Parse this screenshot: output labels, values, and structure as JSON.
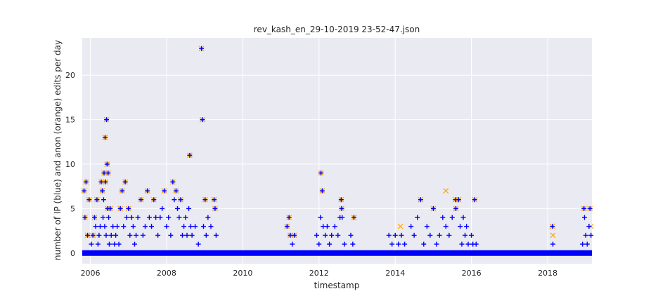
{
  "chart_data": {
    "type": "scatter",
    "title": "rev_kash_en_29-10-2019 23-52-47.json",
    "xlabel": "timestamp",
    "ylabel": "number of IP (blue) and anon (orange) edits per day",
    "xlim": [
      "2005-10-15",
      "2019-03-01"
    ],
    "ylim": [
      -1.2,
      24.2
    ],
    "x_ticks": [
      "2006",
      "2008",
      "2010",
      "2012",
      "2014",
      "2016",
      "2018"
    ],
    "y_ticks": [
      0,
      5,
      10,
      15,
      20
    ],
    "grid": true,
    "colors": {
      "background": "#eaeaf2",
      "ip": "#0000ff",
      "anon": "#ffa500"
    },
    "zero_baseline": {
      "start": "2005-10-15",
      "end": "2019-03-01",
      "value": 0
    },
    "series": [
      {
        "marker": "plus",
        "color": "#0000ff",
        "points": [
          [
            "2005-11-01",
            7
          ],
          [
            "2005-11-10",
            4
          ],
          [
            "2005-11-20",
            8
          ],
          [
            "2005-12-05",
            2
          ],
          [
            "2005-12-20",
            6
          ],
          [
            "2006-01-10",
            1
          ],
          [
            "2006-01-25",
            2
          ],
          [
            "2006-02-10",
            4
          ],
          [
            "2006-02-20",
            3
          ],
          [
            "2006-03-05",
            6
          ],
          [
            "2006-03-15",
            1
          ],
          [
            "2006-03-25",
            2
          ],
          [
            "2006-04-05",
            3
          ],
          [
            "2006-04-15",
            8
          ],
          [
            "2006-04-25",
            7
          ],
          [
            "2006-05-02",
            4
          ],
          [
            "2006-05-08",
            6
          ],
          [
            "2006-05-12",
            9
          ],
          [
            "2006-05-18",
            3
          ],
          [
            "2006-05-22",
            13
          ],
          [
            "2006-05-26",
            8
          ],
          [
            "2006-06-01",
            2
          ],
          [
            "2006-06-05",
            15
          ],
          [
            "2006-06-10",
            10
          ],
          [
            "2006-06-15",
            5
          ],
          [
            "2006-06-20",
            9
          ],
          [
            "2006-06-25",
            4
          ],
          [
            "2006-07-01",
            1
          ],
          [
            "2006-07-10",
            5
          ],
          [
            "2006-07-20",
            2
          ],
          [
            "2006-08-05",
            3
          ],
          [
            "2006-08-20",
            1
          ],
          [
            "2006-09-01",
            2
          ],
          [
            "2006-09-15",
            3
          ],
          [
            "2006-10-01",
            1
          ],
          [
            "2006-10-15",
            5
          ],
          [
            "2006-11-01",
            7
          ],
          [
            "2006-11-15",
            3
          ],
          [
            "2006-12-01",
            8
          ],
          [
            "2006-12-15",
            4
          ],
          [
            "2007-01-01",
            5
          ],
          [
            "2007-01-15",
            2
          ],
          [
            "2007-02-01",
            4
          ],
          [
            "2007-02-15",
            3
          ],
          [
            "2007-03-01",
            1
          ],
          [
            "2007-03-15",
            2
          ],
          [
            "2007-04-01",
            4
          ],
          [
            "2007-05-01",
            6
          ],
          [
            "2007-05-20",
            2
          ],
          [
            "2007-06-10",
            3
          ],
          [
            "2007-07-01",
            7
          ],
          [
            "2007-07-20",
            4
          ],
          [
            "2007-08-10",
            3
          ],
          [
            "2007-09-01",
            6
          ],
          [
            "2007-09-20",
            4
          ],
          [
            "2007-10-10",
            2
          ],
          [
            "2007-11-01",
            4
          ],
          [
            "2007-11-20",
            5
          ],
          [
            "2007-12-10",
            7
          ],
          [
            "2008-01-01",
            3
          ],
          [
            "2008-01-20",
            4
          ],
          [
            "2008-02-10",
            2
          ],
          [
            "2008-03-01",
            8
          ],
          [
            "2008-03-15",
            6
          ],
          [
            "2008-04-01",
            7
          ],
          [
            "2008-04-15",
            5
          ],
          [
            "2008-05-01",
            4
          ],
          [
            "2008-05-15",
            6
          ],
          [
            "2008-06-01",
            2
          ],
          [
            "2008-06-15",
            3
          ],
          [
            "2008-07-01",
            4
          ],
          [
            "2008-07-15",
            2
          ],
          [
            "2008-08-01",
            5
          ],
          [
            "2008-08-10",
            11
          ],
          [
            "2008-08-20",
            3
          ],
          [
            "2008-09-01",
            2
          ],
          [
            "2008-10-01",
            3
          ],
          [
            "2008-11-01",
            1
          ],
          [
            "2008-12-01",
            23
          ],
          [
            "2008-12-10",
            15
          ],
          [
            "2008-12-20",
            3
          ],
          [
            "2009-01-05",
            6
          ],
          [
            "2009-01-15",
            2
          ],
          [
            "2009-02-01",
            4
          ],
          [
            "2009-03-01",
            3
          ],
          [
            "2009-04-01",
            6
          ],
          [
            "2009-04-10",
            5
          ],
          [
            "2009-04-20",
            2
          ],
          [
            "2011-03-01",
            3
          ],
          [
            "2011-03-20",
            4
          ],
          [
            "2011-04-01",
            2
          ],
          [
            "2011-04-20",
            1
          ],
          [
            "2011-05-10",
            2
          ],
          [
            "2011-12-10",
            2
          ],
          [
            "2012-01-01",
            1
          ],
          [
            "2012-01-15",
            4
          ],
          [
            "2012-01-20",
            9
          ],
          [
            "2012-02-01",
            7
          ],
          [
            "2012-02-10",
            3
          ],
          [
            "2012-03-01",
            2
          ],
          [
            "2012-03-20",
            3
          ],
          [
            "2012-04-10",
            1
          ],
          [
            "2012-05-01",
            2
          ],
          [
            "2012-06-01",
            3
          ],
          [
            "2012-07-01",
            2
          ],
          [
            "2012-07-20",
            4
          ],
          [
            "2012-08-01",
            6
          ],
          [
            "2012-08-05",
            5
          ],
          [
            "2012-08-10",
            4
          ],
          [
            "2012-09-01",
            1
          ],
          [
            "2012-11-01",
            2
          ],
          [
            "2012-11-20",
            1
          ],
          [
            "2012-12-01",
            4
          ],
          [
            "2013-11-01",
            2
          ],
          [
            "2013-12-01",
            1
          ],
          [
            "2014-01-01",
            2
          ],
          [
            "2014-02-01",
            1
          ],
          [
            "2014-03-01",
            2
          ],
          [
            "2014-04-01",
            1
          ],
          [
            "2014-06-01",
            3
          ],
          [
            "2014-07-01",
            2
          ],
          [
            "2014-08-01",
            4
          ],
          [
            "2014-09-01",
            6
          ],
          [
            "2014-10-01",
            1
          ],
          [
            "2014-11-01",
            3
          ],
          [
            "2014-12-01",
            2
          ],
          [
            "2015-01-01",
            5
          ],
          [
            "2015-02-01",
            1
          ],
          [
            "2015-03-01",
            2
          ],
          [
            "2015-04-01",
            4
          ],
          [
            "2015-05-01",
            3
          ],
          [
            "2015-06-01",
            2
          ],
          [
            "2015-07-01",
            4
          ],
          [
            "2015-08-01",
            6
          ],
          [
            "2015-08-05",
            5
          ],
          [
            "2015-09-01",
            6
          ],
          [
            "2015-09-15",
            3
          ],
          [
            "2015-10-01",
            1
          ],
          [
            "2015-10-15",
            4
          ],
          [
            "2015-11-01",
            2
          ],
          [
            "2015-11-15",
            3
          ],
          [
            "2015-12-01",
            1
          ],
          [
            "2016-01-01",
            2
          ],
          [
            "2016-01-15",
            1
          ],
          [
            "2016-02-01",
            6
          ],
          [
            "2016-02-15",
            1
          ],
          [
            "2018-02-15",
            3
          ],
          [
            "2018-02-20",
            1
          ],
          [
            "2018-12-01",
            1
          ],
          [
            "2018-12-15",
            5
          ],
          [
            "2018-12-20",
            4
          ],
          [
            "2019-01-01",
            2
          ],
          [
            "2019-01-15",
            1
          ],
          [
            "2019-02-01",
            3
          ],
          [
            "2019-02-10",
            5
          ],
          [
            "2019-02-20",
            2
          ]
        ]
      },
      {
        "marker": "x",
        "color": "#ffa500",
        "points": [
          [
            "2005-11-01",
            7
          ],
          [
            "2005-11-10",
            4
          ],
          [
            "2005-11-20",
            8
          ],
          [
            "2005-12-05",
            2
          ],
          [
            "2005-12-20",
            6
          ],
          [
            "2006-01-25",
            2
          ],
          [
            "2006-02-10",
            4
          ],
          [
            "2006-03-05",
            6
          ],
          [
            "2006-04-15",
            8
          ],
          [
            "2006-04-25",
            7
          ],
          [
            "2006-05-12",
            9
          ],
          [
            "2006-05-22",
            13
          ],
          [
            "2006-05-26",
            8
          ],
          [
            "2006-06-05",
            15
          ],
          [
            "2006-06-10",
            10
          ],
          [
            "2006-06-15",
            5
          ],
          [
            "2006-06-20",
            9
          ],
          [
            "2006-07-10",
            5
          ],
          [
            "2006-10-15",
            5
          ],
          [
            "2006-11-01",
            7
          ],
          [
            "2006-12-01",
            8
          ],
          [
            "2007-01-01",
            5
          ],
          [
            "2007-05-01",
            6
          ],
          [
            "2007-07-01",
            7
          ],
          [
            "2007-09-01",
            6
          ],
          [
            "2007-12-10",
            7
          ],
          [
            "2008-03-01",
            8
          ],
          [
            "2008-04-01",
            7
          ],
          [
            "2008-05-15",
            6
          ],
          [
            "2008-08-10",
            11
          ],
          [
            "2008-12-01",
            23
          ],
          [
            "2008-12-10",
            15
          ],
          [
            "2009-01-05",
            6
          ],
          [
            "2009-04-01",
            6
          ],
          [
            "2009-04-10",
            5
          ],
          [
            "2011-03-01",
            3
          ],
          [
            "2011-03-20",
            4
          ],
          [
            "2011-04-01",
            2
          ],
          [
            "2011-05-10",
            2
          ],
          [
            "2012-01-20",
            9
          ],
          [
            "2012-02-01",
            7
          ],
          [
            "2012-08-01",
            6
          ],
          [
            "2012-08-05",
            5
          ],
          [
            "2012-12-01",
            4
          ],
          [
            "2014-02-20",
            3
          ],
          [
            "2014-09-01",
            6
          ],
          [
            "2015-01-01",
            5
          ],
          [
            "2015-05-01",
            7
          ],
          [
            "2015-08-01",
            6
          ],
          [
            "2015-08-05",
            5
          ],
          [
            "2015-09-01",
            6
          ],
          [
            "2016-02-01",
            6
          ],
          [
            "2018-02-15",
            3
          ],
          [
            "2018-02-20",
            2
          ],
          [
            "2018-12-15",
            5
          ],
          [
            "2019-02-10",
            5
          ],
          [
            "2019-02-20",
            3
          ]
        ]
      }
    ]
  }
}
